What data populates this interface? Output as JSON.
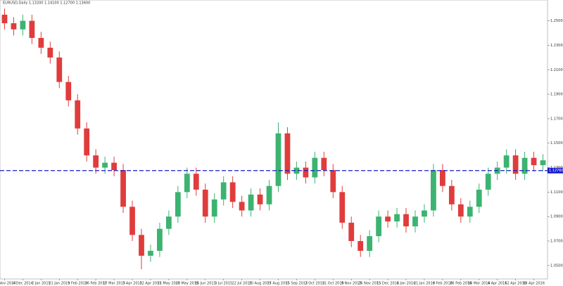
{
  "chart_data": {
    "type": "candlestick",
    "title": "EURUSD,Daily  1.13200 1.14100 1.12700 1.13600",
    "categories": [
      "17 Nov 2014",
      null,
      "4 Dec 2014",
      null,
      "2 Jan 2015",
      null,
      "21 Jan 2015",
      null,
      "9 Feb 2015",
      null,
      "26 Feb 2015",
      null,
      "17 Mar 2015",
      null,
      "3 Apr 2015",
      null,
      "22 Apr 2015",
      null,
      "11 May 2015",
      null,
      "28 May 2015",
      null,
      "16 Jun 2015",
      null,
      "3 Jul 2015",
      null,
      "22 Jul 2015",
      null,
      "10 Aug 2015",
      null,
      "27 Aug 2015",
      null,
      "15 Sep 2015",
      null,
      "2 Oct 2015",
      null,
      "21 Oct 2015",
      null,
      "9 Nov 2015",
      null,
      "26 Nov 2015",
      null,
      "15 Dec 2015",
      null,
      "4 Jan 2016",
      null,
      "21 Jan 2016",
      null,
      "9 Feb 2016",
      null,
      "26 Feb 2016",
      null,
      "16 Mar 2016",
      null,
      "4 Apr 2016",
      null,
      "12 Apr 2016",
      null,
      "19 Apr 2016",
      null
    ],
    "open": [
      1.255,
      1.248,
      1.243,
      1.25,
      1.236,
      1.228,
      1.22,
      1.2,
      1.185,
      1.162,
      1.14,
      1.13,
      1.134,
      1.128,
      1.098,
      1.075,
      1.058,
      1.062,
      1.08,
      1.09,
      1.11,
      1.125,
      1.112,
      1.09,
      1.104,
      1.118,
      1.102,
      1.095,
      1.108,
      1.1,
      1.115,
      1.158,
      1.125,
      1.13,
      1.122,
      1.138,
      1.128,
      1.11,
      1.085,
      1.07,
      1.062,
      1.074,
      1.09,
      1.086,
      1.092,
      1.082,
      1.09,
      1.095,
      1.128,
      1.115,
      1.1,
      1.09,
      1.098,
      1.112,
      1.125,
      1.13,
      1.14,
      1.125,
      1.138,
      1.132
    ],
    "high": [
      1.26,
      1.253,
      1.255,
      1.255,
      1.241,
      1.233,
      1.225,
      1.205,
      1.19,
      1.167,
      1.145,
      1.139,
      1.139,
      1.133,
      1.103,
      1.08,
      1.067,
      1.085,
      1.095,
      1.115,
      1.13,
      1.13,
      1.117,
      1.109,
      1.123,
      1.123,
      1.107,
      1.113,
      1.113,
      1.12,
      1.167,
      1.163,
      1.135,
      1.135,
      1.143,
      1.143,
      1.133,
      1.115,
      1.09,
      1.075,
      1.079,
      1.095,
      1.095,
      1.097,
      1.097,
      1.095,
      1.1,
      1.133,
      1.133,
      1.12,
      1.105,
      1.103,
      1.117,
      1.13,
      1.135,
      1.145,
      1.145,
      1.143,
      1.143,
      1.141
    ],
    "low": [
      1.243,
      1.238,
      1.238,
      1.231,
      1.223,
      1.215,
      1.195,
      1.18,
      1.157,
      1.135,
      1.125,
      1.125,
      1.123,
      1.093,
      1.07,
      1.047,
      1.053,
      1.057,
      1.075,
      1.085,
      1.105,
      1.107,
      1.085,
      1.085,
      1.099,
      1.097,
      1.09,
      1.09,
      1.095,
      1.095,
      1.11,
      1.12,
      1.12,
      1.117,
      1.117,
      1.123,
      1.105,
      1.08,
      1.065,
      1.057,
      1.057,
      1.069,
      1.081,
      1.081,
      1.077,
      1.077,
      1.085,
      1.09,
      1.11,
      1.095,
      1.085,
      1.085,
      1.093,
      1.107,
      1.12,
      1.125,
      1.12,
      1.12,
      1.127,
      1.127
    ],
    "close": [
      1.248,
      1.243,
      1.25,
      1.236,
      1.228,
      1.22,
      1.2,
      1.185,
      1.162,
      1.14,
      1.13,
      1.134,
      1.128,
      1.098,
      1.075,
      1.058,
      1.062,
      1.08,
      1.09,
      1.11,
      1.125,
      1.112,
      1.09,
      1.104,
      1.118,
      1.102,
      1.095,
      1.108,
      1.1,
      1.115,
      1.158,
      1.125,
      1.13,
      1.122,
      1.138,
      1.128,
      1.11,
      1.085,
      1.07,
      1.062,
      1.074,
      1.09,
      1.086,
      1.092,
      1.082,
      1.09,
      1.095,
      1.128,
      1.115,
      1.1,
      1.09,
      1.098,
      1.112,
      1.125,
      1.13,
      1.14,
      1.125,
      1.138,
      1.132,
      1.136
    ],
    "up_color": "#3cb371",
    "down_color": "#e03c3c",
    "ylim": [
      1.039,
      1.267
    ],
    "yticks": [
      {
        "value": 1.05,
        "label": "1.05000"
      },
      {
        "value": 1.07,
        "label": "1.07000"
      },
      {
        "value": 1.09,
        "label": "1.09000"
      },
      {
        "value": 1.11,
        "label": "1.11000"
      },
      {
        "value": 1.13,
        "label": "1.13000"
      },
      {
        "value": 1.15,
        "label": "1.15000"
      },
      {
        "value": 1.17,
        "label": "1.17000"
      },
      {
        "value": 1.19,
        "label": "1.19000"
      },
      {
        "value": 1.21,
        "label": "1.21000"
      },
      {
        "value": 1.23,
        "label": "1.23000"
      },
      {
        "value": 1.25,
        "label": "1.25000"
      }
    ],
    "hline": {
      "value": 1.1276,
      "label": "1.12760",
      "color": "#1a1acc"
    },
    "grid": false
  }
}
